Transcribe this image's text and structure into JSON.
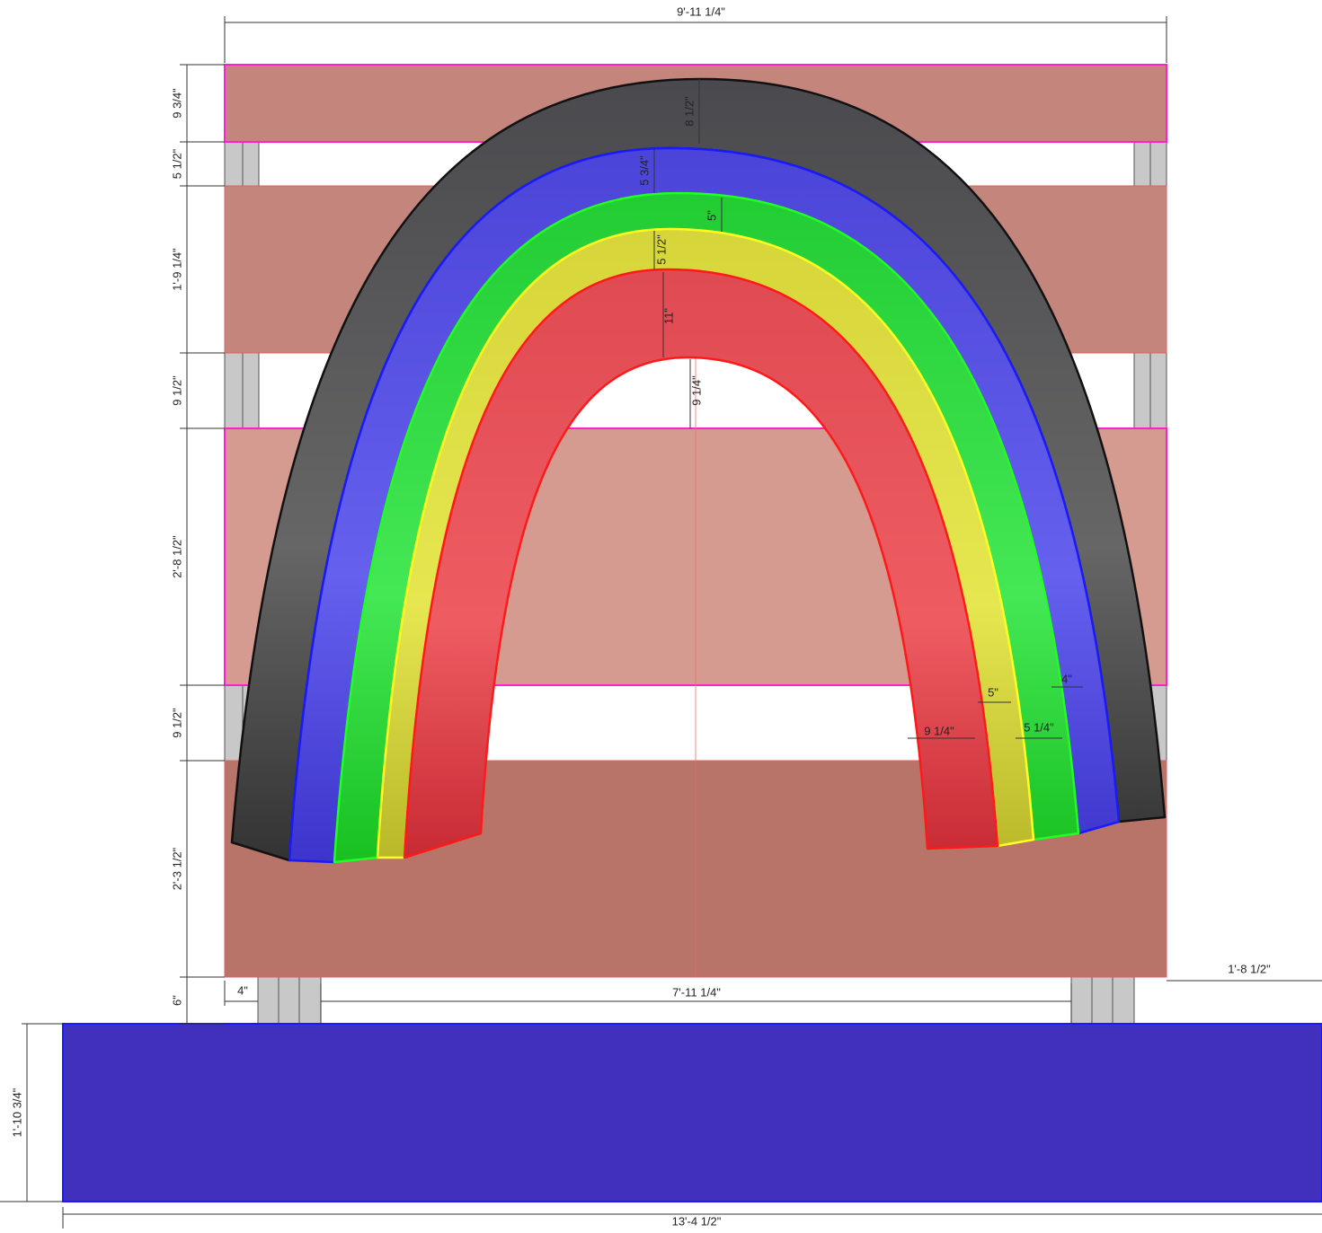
{
  "dimensions": {
    "overall_width": "9'-11 1/4\"",
    "vertical": [
      "9 3/4\"",
      "5 1/2\"",
      "1'-9 1/4\"",
      "9 1/2\"",
      "2'-8 1/2\"",
      "9 1/2\"",
      "2'-3 1/2\"",
      "6\""
    ],
    "base_height": "1'-10 3/4\"",
    "base_width": "13'-4 1/2\"",
    "post_offset": "4\"",
    "post_span": "7'-11 1/4\"",
    "overhang": "1'-8 1/2\""
  },
  "rainbow_labels": {
    "crown": [
      "8 1/2\"",
      "5 3/4\"",
      "5\"",
      "5 1/2\"",
      "11\"",
      "9 1/4\""
    ],
    "leg": [
      "4\"",
      "5\"",
      "9 1/4\"",
      "5 1/4\""
    ]
  }
}
